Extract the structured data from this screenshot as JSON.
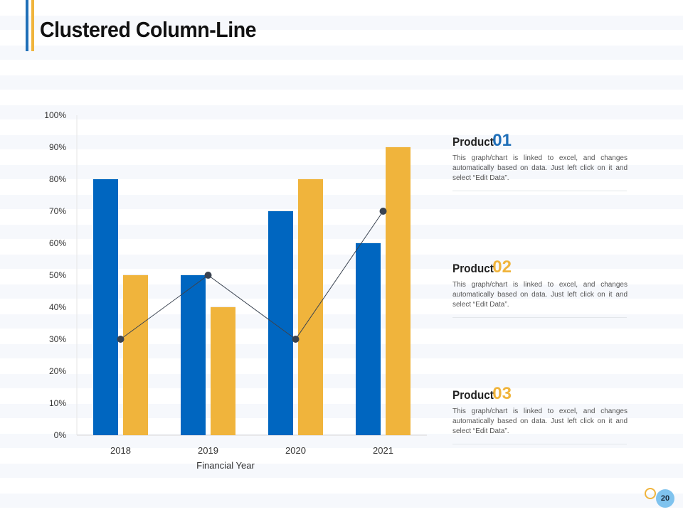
{
  "page": {
    "title": "Clustered Column-Line",
    "page_number": "20"
  },
  "colors": {
    "series_1": "#0066c0",
    "series_2": "#f0b43c",
    "line": "#3a4350",
    "accent_blue": "#1f6fb8",
    "accent_gold": "#f0b43c"
  },
  "chart_data": {
    "type": "bar",
    "title": "Clustered Column-Line",
    "categories": [
      "2018",
      "2019",
      "2020",
      "2021"
    ],
    "series": [
      {
        "name": "Product 01",
        "kind": "column",
        "values": [
          80,
          50,
          70,
          60
        ]
      },
      {
        "name": "Product 02",
        "kind": "column",
        "values": [
          50,
          40,
          80,
          90
        ]
      },
      {
        "name": "Product 03",
        "kind": "line",
        "values": [
          30,
          50,
          30,
          70
        ]
      }
    ],
    "xlabel": "Financial Year",
    "ylabel": "",
    "ylim": [
      0,
      100
    ],
    "yticks": [
      "0%",
      "10%",
      "20%",
      "30%",
      "40%",
      "50%",
      "60%",
      "70%",
      "80%",
      "90%",
      "100%"
    ],
    "legend": "none",
    "grid": false
  },
  "products": [
    {
      "label": "Product ",
      "number": "01",
      "color": "#1f6fb8",
      "description": "This graph/chart is linked to excel, and changes automatically  based on data.  Just left click  on it and select “Edit Data”."
    },
    {
      "label": "Product ",
      "number": "02",
      "color": "#f0b43c",
      "description": "This graph/chart is linked to excel, and changes automatically  based on data.  Just left click  on it and select “Edit Data”."
    },
    {
      "label": "Product ",
      "number": "03",
      "color": "#f0b43c",
      "description": "This graph/chart is linked to excel, and changes automatically  based on data.  Just left click  on it and select “Edit Data”."
    }
  ]
}
